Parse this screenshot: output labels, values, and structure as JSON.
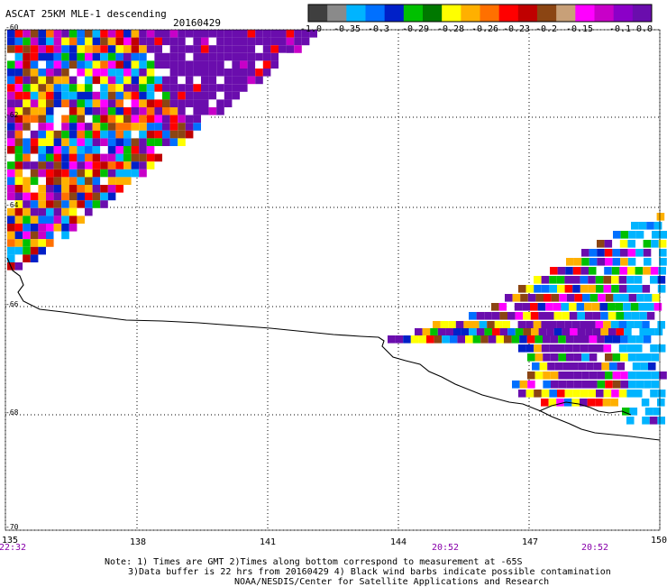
{
  "title": {
    "product": "ASCAT 25KM MLE-1 descending",
    "date": "20160429"
  },
  "colorbar": {
    "colors": [
      "#3f3f3f",
      "#8a8a8a",
      "#00b4ff",
      "#0070ff",
      "#0020c8",
      "#00c000",
      "#007800",
      "#ffff00",
      "#ffb000",
      "#ff7000",
      "#ff0000",
      "#c00000",
      "#8b4513",
      "#c8a078",
      "#ff00ff",
      "#c800c8",
      "#8b00c8",
      "#6a0dad"
    ],
    "tick_labels": [
      "-1.0",
      "-0.35",
      "-0.3",
      "-0.29",
      "-0.28",
      "-0.26",
      "-0.23",
      "-0.2",
      "-0.15",
      "-0.1",
      "0.0"
    ]
  },
  "map": {
    "lat_labels": [
      "-60",
      "-62",
      "-64",
      "-66",
      "-68",
      "-70"
    ],
    "lon_labels": [
      "135",
      "138",
      "141",
      "144",
      "147",
      "150"
    ],
    "time_labels": [
      "22:32",
      "20:52",
      "20:52"
    ]
  },
  "note": {
    "line1": "Note: 1) Times are GMT 2)Times along bottom correspond to measurement at -65S",
    "line2": "3)Data buffer is 22 hrs from 20160429 4) Black wind barbs indicate possible contamination",
    "line3": "NOAA/NESDIS/Center for Satellite Applications and Research"
  }
}
